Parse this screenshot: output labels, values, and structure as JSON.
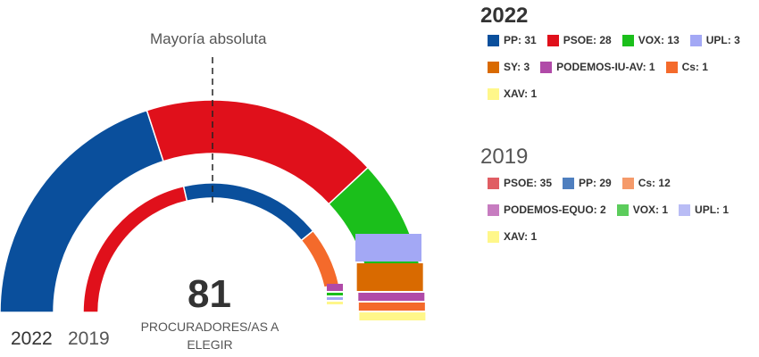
{
  "labels": {
    "majority": "Mayoría absoluta",
    "total_seats": "81",
    "total_caption": "PROCURADORES/AS A ELEGIR",
    "outer_ring": "2022",
    "inner_ring": "2019"
  },
  "chart_data": {
    "type": "parliament-hemicycle",
    "total": 81,
    "majority": 41,
    "series": [
      {
        "name": "2022",
        "parties": [
          {
            "name": "PP",
            "seats": 31,
            "color": "#0a4f9c"
          },
          {
            "name": "PSOE",
            "seats": 28,
            "color": "#e0101b"
          },
          {
            "name": "VOX",
            "seats": 13,
            "color": "#1bbf1b"
          },
          {
            "name": "UPL",
            "seats": 3,
            "color": "#a3a8f5"
          },
          {
            "name": "SY",
            "seats": 3,
            "color": "#d96a00"
          },
          {
            "name": "PODEMOS-IU-AV",
            "seats": 1,
            "color": "#b04aa8"
          },
          {
            "name": "Cs",
            "seats": 1,
            "color": "#f46a2b"
          },
          {
            "name": "XAV",
            "seats": 1,
            "color": "#fff78a"
          }
        ]
      },
      {
        "name": "2019",
        "parties": [
          {
            "name": "PSOE",
            "seats": 35,
            "color": "#e0101b"
          },
          {
            "name": "PP",
            "seats": 29,
            "color": "#0a4f9c"
          },
          {
            "name": "Cs",
            "seats": 12,
            "color": "#f46a2b"
          },
          {
            "name": "PODEMOS-EQUO",
            "seats": 2,
            "color": "#b04aa8"
          },
          {
            "name": "VOX",
            "seats": 1,
            "color": "#1bbf1b"
          },
          {
            "name": "UPL",
            "seats": 1,
            "color": "#a3a8f5"
          },
          {
            "name": "XAV",
            "seats": 1,
            "color": "#fff78a"
          }
        ]
      }
    ],
    "legend_2019_colors": {
      "PSOE": "#e05d63",
      "PP": "#4f7fbf",
      "Cs": "#f59a6a",
      "PODEMOS-EQUO": "#c77cc0",
      "VOX": "#5ccc5c",
      "UPL": "#b9bcf5",
      "XAV": "#fff78a"
    }
  }
}
